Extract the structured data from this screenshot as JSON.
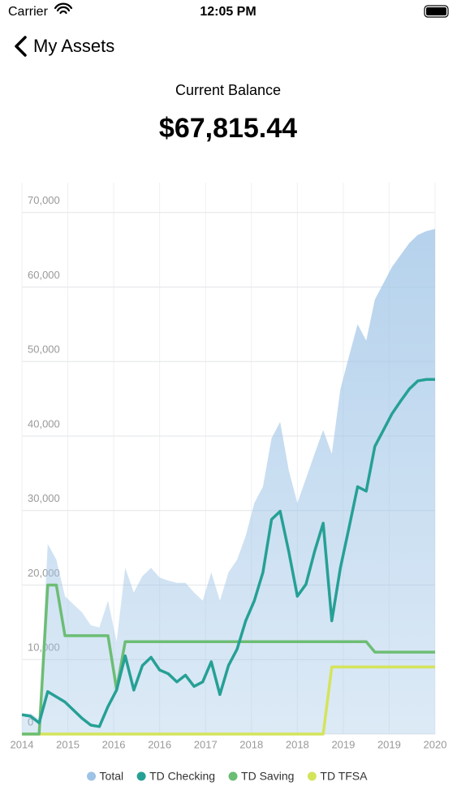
{
  "status_bar": {
    "carrier": "Carrier",
    "time": "12:05 PM"
  },
  "nav": {
    "back_title": "My Assets"
  },
  "balance": {
    "label": "Current Balance",
    "amount": "$67,815.44"
  },
  "chart_data": {
    "type": "line",
    "x": [
      2014,
      2014.125,
      2014.25,
      2014.375,
      2014.5,
      2014.625,
      2014.75,
      2014.875,
      2015,
      2015.125,
      2015.25,
      2015.375,
      2015.5,
      2015.625,
      2015.75,
      2015.875,
      2016,
      2016.125,
      2016.25,
      2016.375,
      2016.5,
      2016.625,
      2016.75,
      2016.875,
      2017,
      2017.125,
      2017.25,
      2017.375,
      2017.5,
      2017.625,
      2017.75,
      2017.875,
      2018,
      2018.125,
      2018.25,
      2018.375,
      2018.5,
      2018.625,
      2018.75,
      2018.875,
      2019,
      2019.125,
      2019.25,
      2019.375,
      2019.5,
      2019.625,
      2019.75,
      2019.875,
      2020
    ],
    "series": [
      {
        "name": "Total",
        "color": "#9dc3e6",
        "kind": "area",
        "values": [
          2600,
          2800,
          2000,
          25500,
          23400,
          18500,
          17400,
          16300,
          14600,
          14300,
          17900,
          12400,
          22300,
          19000,
          21200,
          22300,
          21000,
          20600,
          20300,
          20300,
          19000,
          17900,
          21700,
          17900,
          21700,
          23400,
          26600,
          31000,
          33200,
          39700,
          41900,
          35400,
          31000,
          34300,
          37600,
          40800,
          37600,
          46300,
          50700,
          55000,
          52800,
          58300,
          60500,
          62700,
          64300,
          65900,
          67000,
          67500,
          67800
        ]
      },
      {
        "name": "TD Checking",
        "color": "#26a095",
        "kind": "line",
        "values": [
          2600,
          2400,
          1500,
          5700,
          5000,
          4300,
          3200,
          2100,
          1200,
          1000,
          3700,
          5900,
          10500,
          5900,
          9200,
          10300,
          8600,
          8100,
          7000,
          7900,
          6400,
          7000,
          9700,
          5300,
          9200,
          11400,
          15200,
          17900,
          21700,
          28800,
          29900,
          24500,
          18500,
          20100,
          24500,
          28300,
          15200,
          22300,
          27700,
          33200,
          32600,
          38600,
          40800,
          43000,
          44700,
          46300,
          47400,
          47600,
          47600
        ]
      },
      {
        "name": "TD Saving",
        "color": "#6cbd74",
        "kind": "line",
        "values": [
          0,
          0,
          0,
          20000,
          20000,
          13200,
          13200,
          13200,
          13200,
          13200,
          13200,
          6000,
          12400,
          12400,
          12400,
          12400,
          12400,
          12400,
          12400,
          12400,
          12400,
          12400,
          12400,
          12400,
          12400,
          12400,
          12400,
          12400,
          12400,
          12400,
          12400,
          12400,
          12400,
          12400,
          12400,
          12400,
          12400,
          12400,
          12400,
          12400,
          12400,
          11000,
          11000,
          11000,
          11000,
          11000,
          11000,
          11000,
          11000
        ]
      },
      {
        "name": "TD TFSA",
        "color": "#d4e45a",
        "kind": "line",
        "values": [
          0,
          0,
          0,
          0,
          0,
          0,
          0,
          0,
          0,
          0,
          0,
          0,
          0,
          0,
          0,
          0,
          0,
          0,
          0,
          0,
          0,
          0,
          0,
          0,
          0,
          0,
          0,
          0,
          0,
          0,
          0,
          0,
          0,
          0,
          0,
          0,
          9000,
          9000,
          9000,
          9000,
          9000,
          9000,
          9000,
          9000,
          9000,
          9000,
          9000,
          9000,
          9000
        ]
      }
    ],
    "xlim": [
      2014,
      2020
    ],
    "xticks": [
      {
        "value": 2014,
        "label": "2014"
      },
      {
        "value": 2014.667,
        "label": "2015"
      },
      {
        "value": 2015.333,
        "label": "2016"
      },
      {
        "value": 2016,
        "label": "2016"
      },
      {
        "value": 2016.667,
        "label": "2017"
      },
      {
        "value": 2017.333,
        "label": "2018"
      },
      {
        "value": 2018,
        "label": "2018"
      },
      {
        "value": 2018.667,
        "label": "2019"
      },
      {
        "value": 2019.333,
        "label": "2019"
      },
      {
        "value": 2020,
        "label": "2020"
      }
    ],
    "ylim": [
      0,
      74000
    ],
    "yticks": [
      0,
      {
        "value": 10000,
        "label": "10,000"
      },
      {
        "value": 20000,
        "label": "20,000"
      },
      {
        "value": 30000,
        "label": "30,000"
      },
      {
        "value": 40000,
        "label": "40,000"
      },
      {
        "value": 50000,
        "label": "50,000"
      },
      {
        "value": 60000,
        "label": "60,000"
      },
      {
        "value": 70000,
        "label": "70,000"
      }
    ],
    "grid": true,
    "legend": "bottom"
  }
}
